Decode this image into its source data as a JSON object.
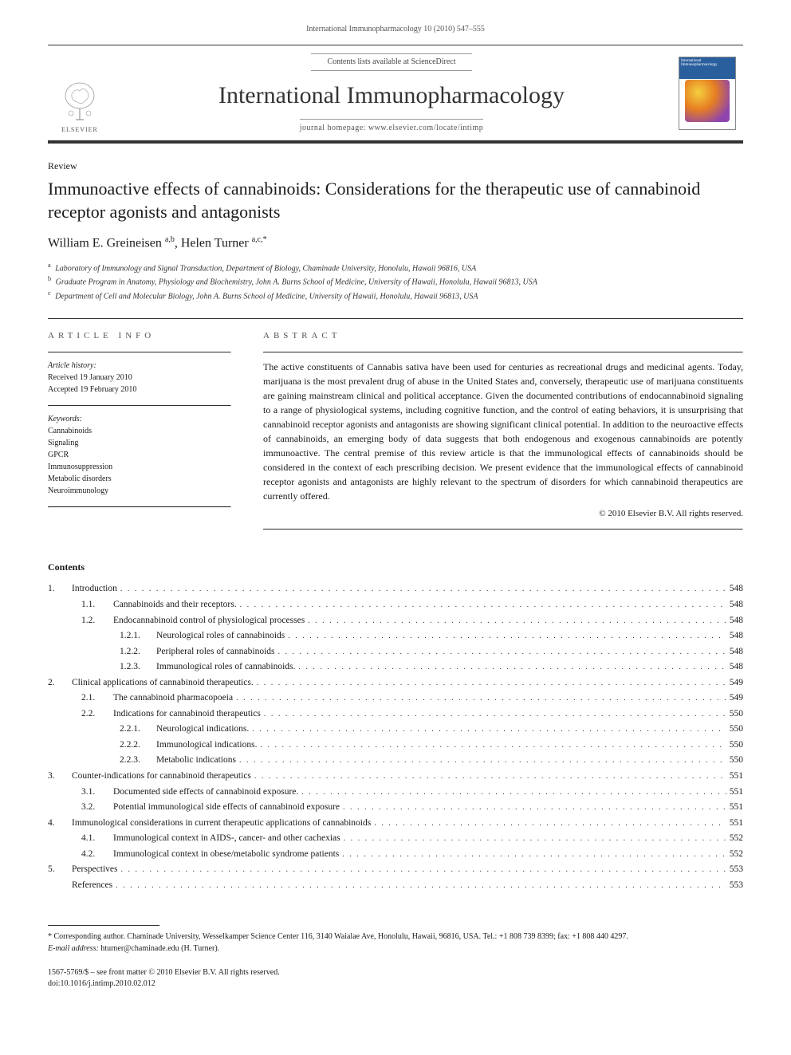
{
  "running_head": "International Immunopharmacology 10 (2010) 547–555",
  "masthead": {
    "contents_line_prefix": "Contents lists available at ",
    "contents_line_link": "ScienceDirect",
    "journal": "International Immunopharmacology",
    "homepage_prefix": "journal homepage: ",
    "homepage": "www.elsevier.com/locate/intimp",
    "publisher": "ELSEVIER",
    "cover_label": "International Immunopharmacology"
  },
  "article": {
    "type": "Review",
    "title": "Immunoactive effects of cannabinoids: Considerations for the therapeutic use of cannabinoid receptor agonists and antagonists",
    "authors_html": "William E. Greineisen <sup>a,b</sup>, Helen Turner <sup>a,c,*</sup>",
    "affiliations": [
      {
        "sup": "a",
        "text": "Laboratory of Immunology and Signal Transduction, Department of Biology, Chaminade University, Honolulu, Hawaii 96816, USA"
      },
      {
        "sup": "b",
        "text": "Graduate Program in Anatomy, Physiology and Biochemistry, John A. Burns School of Medicine, University of Hawaii, Honolulu, Hawaii 96813, USA"
      },
      {
        "sup": "c",
        "text": "Department of Cell and Molecular Biology, John A. Burns School of Medicine, University of Hawaii, Honolulu, Hawaii 96813, USA"
      }
    ]
  },
  "info": {
    "label": "ARTICLE INFO",
    "history_hdr": "Article history:",
    "history": [
      "Received 19 January 2010",
      "Accepted 19 February 2010"
    ],
    "keywords_hdr": "Keywords:",
    "keywords": [
      "Cannabinoids",
      "Signaling",
      "GPCR",
      "Immunosuppression",
      "Metabolic disorders",
      "Neuroimmunology"
    ]
  },
  "abstract": {
    "label": "ABSTRACT",
    "text": "The active constituents of Cannabis sativa have been used for centuries as recreational drugs and medicinal agents. Today, marijuana is the most prevalent drug of abuse in the United States and, conversely, therapeutic use of marijuana constituents are gaining mainstream clinical and political acceptance. Given the documented contributions of endocannabinoid signaling to a range of physiological systems, including cognitive function, and the control of eating behaviors, it is unsurprising that cannabinoid receptor agonists and antagonists are showing significant clinical potential. In addition to the neuroactive effects of cannabinoids, an emerging body of data suggests that both endogenous and exogenous cannabinoids are potently immunoactive. The central premise of this review article is that the immunological effects of cannabinoids should be considered in the context of each prescribing decision. We present evidence that the immunological effects of cannabinoid receptor agonists and antagonists are highly relevant to the spectrum of disorders for which cannabinoid therapeutics are currently offered.",
    "copyright": "© 2010 Elsevier B.V. All rights reserved."
  },
  "contents": {
    "heading": "Contents",
    "items": [
      {
        "lv": 1,
        "num": "1.",
        "label": "Introduction",
        "page": "548"
      },
      {
        "lv": 2,
        "num": "1.1.",
        "label": "Cannabinoids and their receptors.",
        "page": "548"
      },
      {
        "lv": 2,
        "num": "1.2.",
        "label": "Endocannabinoid control of physiological processes",
        "page": "548"
      },
      {
        "lv": 3,
        "num": "1.2.1.",
        "label": "Neurological roles of cannabinoids",
        "page": "548"
      },
      {
        "lv": 3,
        "num": "1.2.2.",
        "label": "Peripheral roles of cannabinoids",
        "page": "548"
      },
      {
        "lv": 3,
        "num": "1.2.3.",
        "label": "Immunological roles of cannabinoids.",
        "page": "548"
      },
      {
        "lv": 1,
        "num": "2.",
        "label": "Clinical applications of cannabinoid therapeutics.",
        "page": "549"
      },
      {
        "lv": 2,
        "num": "2.1.",
        "label": "The cannabinoid pharmacopoeia",
        "page": "549"
      },
      {
        "lv": 2,
        "num": "2.2.",
        "label": "Indications for cannabinoid therapeutics",
        "page": "550"
      },
      {
        "lv": 3,
        "num": "2.2.1.",
        "label": "Neurological indications.",
        "page": "550"
      },
      {
        "lv": 3,
        "num": "2.2.2.",
        "label": "Immunological indications.",
        "page": "550"
      },
      {
        "lv": 3,
        "num": "2.2.3.",
        "label": "Metabolic indications",
        "page": "550"
      },
      {
        "lv": 1,
        "num": "3.",
        "label": "Counter-indications for cannabinoid therapeutics",
        "page": "551"
      },
      {
        "lv": 2,
        "num": "3.1.",
        "label": "Documented side effects of cannabinoid exposure.",
        "page": "551"
      },
      {
        "lv": 2,
        "num": "3.2.",
        "label": "Potential immunological side effects of cannabinoid exposure",
        "page": "551"
      },
      {
        "lv": 1,
        "num": "4.",
        "label": "Immunological considerations in current therapeutic applications of cannabinoids",
        "page": "551"
      },
      {
        "lv": 2,
        "num": "4.1.",
        "label": "Immunological context in AIDS-, cancer- and other cachexias",
        "page": "552"
      },
      {
        "lv": 2,
        "num": "4.2.",
        "label": "Immunological context in obese/metabolic syndrome patients",
        "page": "552"
      },
      {
        "lv": 1,
        "num": "5.",
        "label": "Perspectives",
        "page": "553"
      },
      {
        "lv": 0,
        "num": "",
        "label": "References",
        "page": "553"
      }
    ]
  },
  "footnotes": {
    "corr": "* Corresponding author. Chaminade University, Wesselkamper Science Center 116, 3140 Waialae Ave, Honolulu, Hawaii, 96816, USA. Tel.: +1 808 739 8399; fax: +1 808 440 4297.",
    "email_label": "E-mail address: ",
    "email": "hturner@chaminade.edu",
    "email_suffix": " (H. Turner)."
  },
  "bottom": {
    "line1": "1567-5769/$ – see front matter © 2010 Elsevier B.V. All rights reserved.",
    "line2": "doi:10.1016/j.intimp.2010.02.012"
  },
  "colors": {
    "text": "#1a1a1a",
    "rule": "#333333",
    "muted": "#555555",
    "cover_blue": "#2a5f9e"
  }
}
